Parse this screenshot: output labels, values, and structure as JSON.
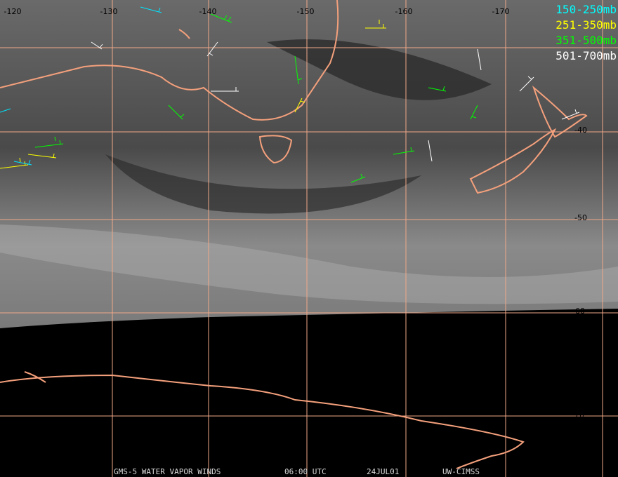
{
  "grid": {
    "longitudes": [
      "-120",
      "-130",
      "-140",
      "-150",
      "-160",
      "-170"
    ],
    "latitudes": [
      "-40",
      "-50",
      "-60",
      "-70"
    ]
  },
  "legend": [
    "150-250mb",
    "251-350mb",
    "351-500mb",
    "501-700mb"
  ],
  "footer": {
    "product": "GMS-5 WATER VAPOR WINDS",
    "time": "06:00 UTC",
    "date": "24JUL01",
    "source": "UW-CIMSS"
  }
}
